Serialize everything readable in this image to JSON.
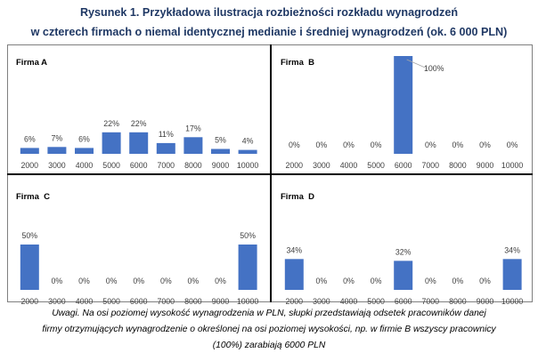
{
  "title": {
    "line1": "Rysunek 1. Przykładowa ilustracja rozbieżności rozkładu wynagrodzeń",
    "line2": "w czterech firmach o niemal identycznej medianie i średniej wynagrodzeń (ok. 6 000 PLN)"
  },
  "note": {
    "line1": "Uwagi. Na osi poziomej wysokość wynagrodzenia w PLN, słupki przedstawiają odsetek pracowników danej",
    "line2": "firmy otrzymujących wynagrodzenie o określonej na osi poziomej wysokości, np. w firmie B wszyscy pracownicy",
    "line3": "(100%) zarabiają 6000 PLN"
  },
  "colors": {
    "bar": "#4472c4",
    "title": "#1f3864",
    "leader_line": "#a6a6a6"
  },
  "chart_data": [
    {
      "type": "bar",
      "title": "Firma A",
      "categories": [
        "2000",
        "3000",
        "4000",
        "5000",
        "6000",
        "7000",
        "8000",
        "9000",
        "10000"
      ],
      "values": [
        6,
        7,
        6,
        22,
        22,
        11,
        17,
        5,
        4
      ],
      "labels": [
        "6%",
        "7%",
        "6%",
        "22%",
        "22%",
        "11%",
        "17%",
        "5%",
        "4%"
      ],
      "ylim": [
        0,
        100
      ]
    },
    {
      "type": "bar",
      "title": "Firma  B",
      "categories": [
        "2000",
        "3000",
        "4000",
        "5000",
        "6000",
        "7000",
        "8000",
        "9000",
        "10000"
      ],
      "values": [
        0,
        0,
        0,
        0,
        100,
        0,
        0,
        0,
        0
      ],
      "labels": [
        "0%",
        "0%",
        "0%",
        "0%",
        "100%",
        "0%",
        "0%",
        "0%",
        "0%"
      ],
      "ylim": [
        0,
        100
      ]
    },
    {
      "type": "bar",
      "title": "Firma  C",
      "categories": [
        "2000",
        "3000",
        "4000",
        "5000",
        "6000",
        "7000",
        "8000",
        "9000",
        "10000"
      ],
      "values": [
        50,
        0,
        0,
        0,
        0,
        0,
        0,
        0,
        50
      ],
      "labels": [
        "50%",
        "0%",
        "0%",
        "0%",
        "0%",
        "0%",
        "0%",
        "0%",
        "50%"
      ],
      "ylim": [
        0,
        100
      ]
    },
    {
      "type": "bar",
      "title": "Firma  D",
      "categories": [
        "2000",
        "3000",
        "4000",
        "5000",
        "6000",
        "7000",
        "8000",
        "9000",
        "10000"
      ],
      "values": [
        34,
        0,
        0,
        0,
        32,
        0,
        0,
        0,
        34
      ],
      "labels": [
        "34%",
        "0%",
        "0%",
        "0%",
        "32%",
        "0%",
        "0%",
        "0%",
        "34%"
      ],
      "ylim": [
        0,
        100
      ]
    }
  ]
}
